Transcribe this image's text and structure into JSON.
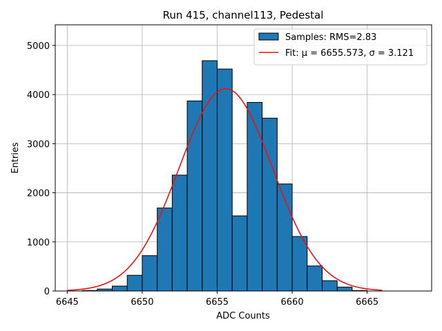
{
  "chart_data": {
    "type": "bar",
    "title": "Run 415, channel113, Pedestal",
    "xlabel": "ADC Counts",
    "ylabel": "Entries",
    "xlim": [
      6644.2,
      6669.3
    ],
    "ylim": [
      0,
      5420
    ],
    "xticks": [
      6645,
      6650,
      6655,
      6660,
      6665
    ],
    "yticks": [
      0,
      1000,
      2000,
      3000,
      4000,
      5000
    ],
    "grid": true,
    "legend_position": "top-right",
    "colors": {
      "bar": "#1f77b4",
      "fit": "#ee1111"
    },
    "histogram": {
      "name": "Samples: RMS=2.83",
      "bin_width": 1,
      "bin_edges_start": 6645,
      "values": [
        0,
        10,
        40,
        100,
        320,
        720,
        1690,
        2360,
        3870,
        4690,
        4520,
        1530,
        3840,
        3520,
        2180,
        1110,
        510,
        210,
        80,
        10,
        0,
        0,
        0
      ]
    },
    "fit": {
      "name": "Fit: μ = 6655.573, σ = 3.121",
      "mu": 6655.573,
      "sigma": 3.121,
      "amplitude": 4120,
      "x_range": [
        6645,
        6666
      ]
    }
  }
}
